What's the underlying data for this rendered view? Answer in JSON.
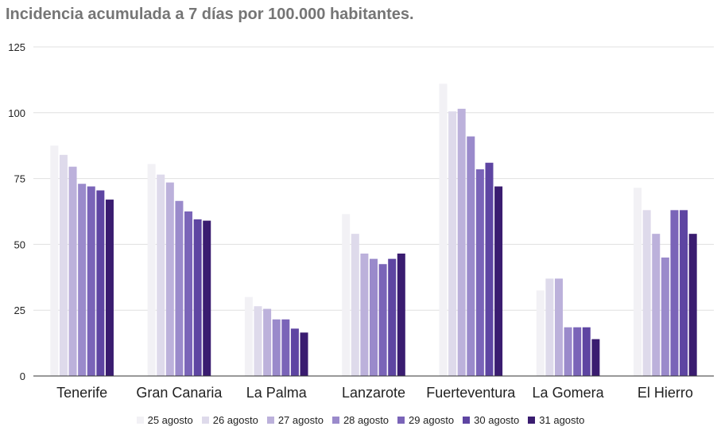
{
  "chart_data": {
    "type": "bar",
    "title": "Incidencia acumulada a 7 días por 100.000 habitantes.",
    "xlabel": "",
    "ylabel": "",
    "ylim": [
      0,
      125
    ],
    "yticks": [
      "0",
      "25",
      "50",
      "75",
      "100",
      "125"
    ],
    "grid": true,
    "legend_position": "bottom",
    "categories": [
      "Tenerife",
      "Gran Canaria",
      "La Palma",
      "Lanzarote",
      "Fuerteventura",
      "La Gomera",
      "El Hierro"
    ],
    "series": [
      {
        "name": "25 agosto",
        "color": "#f2f1f5",
        "values": [
          87.5,
          80.5,
          30,
          61.5,
          111,
          32.5,
          71.5
        ]
      },
      {
        "name": "26 agosto",
        "color": "#dedaeb",
        "values": [
          84,
          76.5,
          26.5,
          54,
          100.5,
          37,
          63
        ]
      },
      {
        "name": "27 agosto",
        "color": "#bcb1db",
        "values": [
          79.5,
          73.5,
          25.5,
          46.5,
          101.5,
          37,
          54
        ]
      },
      {
        "name": "28 agosto",
        "color": "#9a8acb",
        "values": [
          73,
          66.5,
          21.5,
          44.5,
          91,
          18.5,
          45
        ]
      },
      {
        "name": "29 agosto",
        "color": "#7a64b8",
        "values": [
          72,
          62.5,
          21.5,
          42.5,
          78.5,
          18.5,
          63
        ]
      },
      {
        "name": "30 agosto",
        "color": "#5e45a2",
        "values": [
          70.5,
          59.5,
          18,
          44.5,
          81,
          18.5,
          63
        ]
      },
      {
        "name": "31 agosto",
        "color": "#3a1c70",
        "values": [
          67,
          59,
          16.5,
          46.5,
          72,
          14,
          54
        ]
      }
    ]
  }
}
